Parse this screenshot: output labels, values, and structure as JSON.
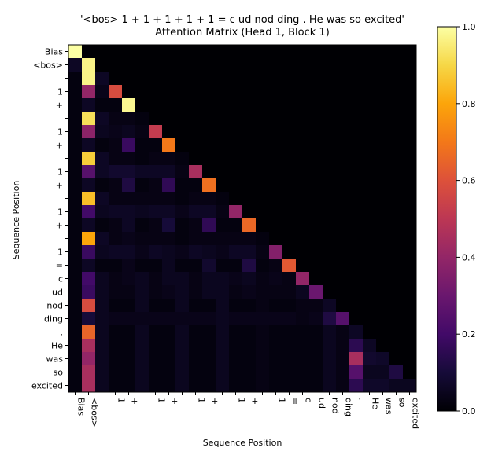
{
  "chart_data": {
    "type": "heatmap",
    "title_line1": "'<bos>  1 +  1 +  1 +  1 +  1 = c ud nod ding . He was so excited'",
    "title_line2": "Attention Matrix (Head 1, Block 1)",
    "xlabel": "Sequence Position",
    "ylabel": "Sequence Position",
    "colormap": "inferno",
    "colorbar": {
      "min": 0.0,
      "max": 1.0,
      "ticks": [
        "0.0",
        "0.2",
        "0.4",
        "0.6",
        "0.8",
        "1.0"
      ]
    },
    "tokens": [
      "Bias",
      "<bos>",
      "",
      "1",
      "+",
      "",
      "1",
      "+",
      "",
      "1",
      "+",
      "",
      "1",
      "+",
      "",
      "1",
      "=",
      "c",
      "ud",
      "nod",
      "ding",
      ".",
      "He",
      "was",
      "so",
      "excited"
    ],
    "rows": [
      [
        1.0
      ],
      [
        0.06,
        0.97
      ],
      [
        0.02,
        0.97,
        0.06
      ],
      [
        0.02,
        0.4,
        0.04,
        0.58
      ],
      [
        0.02,
        0.06,
        0.02,
        0.02,
        0.98
      ],
      [
        0.02,
        0.92,
        0.06,
        0.03,
        0.03,
        0.02
      ],
      [
        0.02,
        0.38,
        0.05,
        0.04,
        0.05,
        0.03,
        0.52
      ],
      [
        0.02,
        0.06,
        0.02,
        0.03,
        0.18,
        0.02,
        0.02,
        0.7
      ],
      [
        0.02,
        0.88,
        0.06,
        0.03,
        0.03,
        0.02,
        0.03,
        0.03,
        0.02
      ],
      [
        0.02,
        0.25,
        0.06,
        0.08,
        0.08,
        0.06,
        0.06,
        0.06,
        0.03,
        0.45
      ],
      [
        0.02,
        0.06,
        0.02,
        0.03,
        0.12,
        0.02,
        0.03,
        0.16,
        0.02,
        0.02,
        0.68
      ],
      [
        0.02,
        0.85,
        0.06,
        0.03,
        0.03,
        0.03,
        0.03,
        0.03,
        0.02,
        0.03,
        0.03,
        0.02
      ],
      [
        0.02,
        0.2,
        0.05,
        0.06,
        0.06,
        0.05,
        0.06,
        0.06,
        0.04,
        0.06,
        0.06,
        0.03,
        0.4
      ],
      [
        0.02,
        0.06,
        0.02,
        0.03,
        0.06,
        0.02,
        0.03,
        0.1,
        0.02,
        0.03,
        0.16,
        0.02,
        0.02,
        0.66
      ],
      [
        0.02,
        0.8,
        0.06,
        0.03,
        0.04,
        0.03,
        0.03,
        0.03,
        0.02,
        0.03,
        0.03,
        0.03,
        0.03,
        0.03,
        0.02
      ],
      [
        0.02,
        0.18,
        0.05,
        0.06,
        0.06,
        0.04,
        0.06,
        0.05,
        0.04,
        0.06,
        0.05,
        0.04,
        0.06,
        0.06,
        0.03,
        0.36
      ],
      [
        0.02,
        0.06,
        0.02,
        0.02,
        0.04,
        0.02,
        0.02,
        0.05,
        0.02,
        0.02,
        0.08,
        0.02,
        0.02,
        0.12,
        0.02,
        0.03,
        0.62
      ],
      [
        0.02,
        0.2,
        0.05,
        0.03,
        0.04,
        0.05,
        0.03,
        0.05,
        0.05,
        0.03,
        0.05,
        0.05,
        0.04,
        0.05,
        0.03,
        0.04,
        0.03,
        0.4
      ],
      [
        0.02,
        0.18,
        0.05,
        0.03,
        0.03,
        0.05,
        0.03,
        0.04,
        0.05,
        0.03,
        0.05,
        0.05,
        0.03,
        0.04,
        0.03,
        0.03,
        0.03,
        0.05,
        0.3
      ],
      [
        0.02,
        0.58,
        0.05,
        0.02,
        0.02,
        0.05,
        0.02,
        0.02,
        0.05,
        0.02,
        0.02,
        0.05,
        0.02,
        0.02,
        0.03,
        0.02,
        0.02,
        0.03,
        0.03,
        0.06
      ],
      [
        0.02,
        0.1,
        0.05,
        0.04,
        0.04,
        0.04,
        0.04,
        0.04,
        0.04,
        0.04,
        0.04,
        0.05,
        0.04,
        0.04,
        0.04,
        0.04,
        0.04,
        0.03,
        0.04,
        0.12,
        0.25
      ],
      [
        0.02,
        0.65,
        0.05,
        0.02,
        0.02,
        0.05,
        0.02,
        0.02,
        0.05,
        0.02,
        0.02,
        0.05,
        0.02,
        0.02,
        0.03,
        0.02,
        0.02,
        0.02,
        0.02,
        0.05,
        0.03,
        0.06
      ],
      [
        0.02,
        0.45,
        0.05,
        0.02,
        0.02,
        0.05,
        0.02,
        0.02,
        0.05,
        0.02,
        0.02,
        0.05,
        0.02,
        0.02,
        0.03,
        0.02,
        0.02,
        0.02,
        0.02,
        0.05,
        0.03,
        0.15,
        0.06
      ],
      [
        0.02,
        0.4,
        0.05,
        0.02,
        0.02,
        0.05,
        0.02,
        0.02,
        0.05,
        0.02,
        0.02,
        0.05,
        0.02,
        0.02,
        0.03,
        0.02,
        0.02,
        0.02,
        0.02,
        0.05,
        0.03,
        0.45,
        0.08,
        0.07
      ],
      [
        0.02,
        0.45,
        0.05,
        0.02,
        0.02,
        0.05,
        0.02,
        0.02,
        0.05,
        0.02,
        0.02,
        0.05,
        0.02,
        0.02,
        0.03,
        0.02,
        0.02,
        0.02,
        0.02,
        0.05,
        0.03,
        0.25,
        0.05,
        0.05,
        0.12
      ],
      [
        0.02,
        0.45,
        0.05,
        0.02,
        0.02,
        0.05,
        0.02,
        0.02,
        0.05,
        0.02,
        0.02,
        0.05,
        0.02,
        0.02,
        0.03,
        0.02,
        0.02,
        0.02,
        0.02,
        0.05,
        0.03,
        0.15,
        0.07,
        0.07,
        0.05,
        0.05
      ]
    ]
  }
}
